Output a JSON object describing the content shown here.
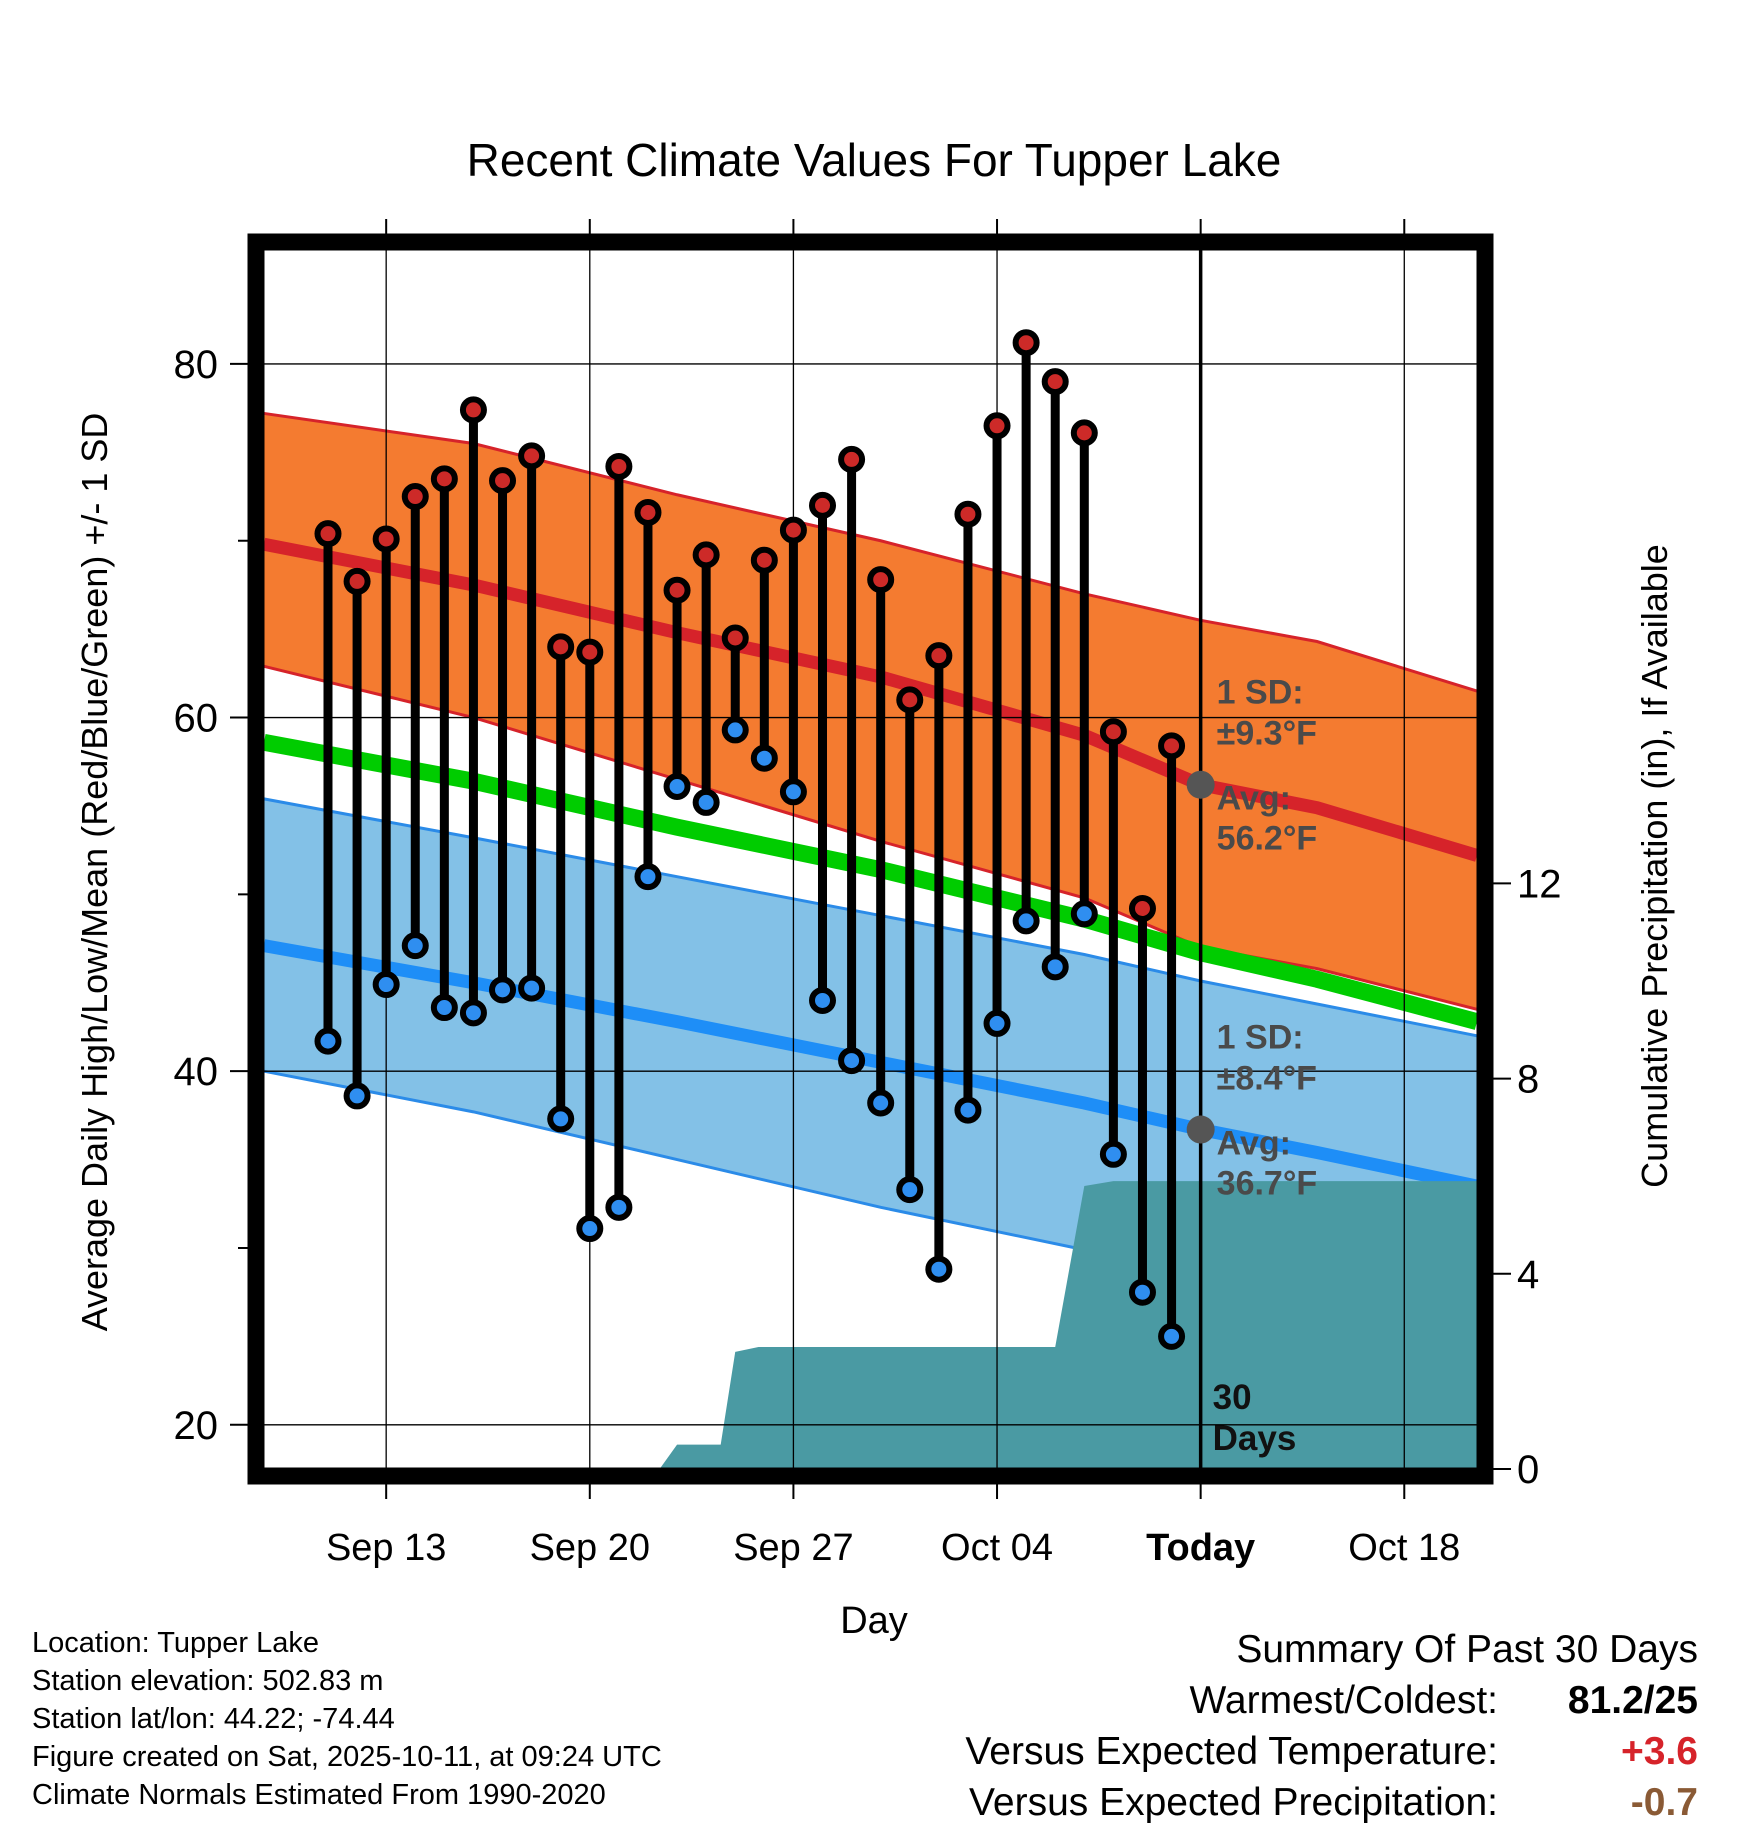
{
  "chart_data": {
    "type": "line",
    "title": "Recent Climate Values For Tupper Lake",
    "xlabel": "Day",
    "ylabel": "Average Daily High/Low/Mean (Red/Blue/Green) +/- 1 SD",
    "y2label": "Cumulative Precipitation (in), If Available",
    "xlim_days": [
      -32.2,
      9.5
    ],
    "ylim": [
      17.5,
      86.5
    ],
    "y2lim": [
      0,
      25
    ],
    "x_tick_labels": [
      "Sep 13",
      "Sep 20",
      "Sep 27",
      "Oct 04",
      "Today",
      "Oct 18"
    ],
    "x_tick_days": [
      -28,
      -21,
      -14,
      -7,
      0,
      7
    ],
    "y_ticks": [
      20,
      40,
      60,
      80
    ],
    "y_tick_labels": [
      "20",
      "40",
      "60",
      "80"
    ],
    "y2_ticks": [
      0,
      4,
      8,
      12
    ],
    "y2_tick_labels": [
      "0",
      "4",
      "8",
      "12"
    ],
    "normals": {
      "x": [
        -32.2,
        -25,
        -18,
        -11,
        -4,
        0,
        4,
        9.5
      ],
      "high_mean": [
        69.8,
        67.5,
        64.8,
        62.3,
        59.0,
        56.2,
        54.9,
        52.2
      ],
      "high_upper": [
        77.2,
        75.5,
        72.6,
        70.0,
        67.0,
        65.5,
        64.3,
        61.5
      ],
      "high_lower": [
        62.9,
        60.0,
        56.5,
        53.0,
        49.8,
        47.0,
        45.8,
        43.5
      ],
      "low_mean": [
        47.1,
        45.0,
        42.8,
        40.5,
        38.2,
        36.7,
        35.4,
        33.5
      ],
      "low_upper": [
        55.4,
        53.2,
        51.0,
        48.8,
        46.6,
        45.1,
        43.8,
        42.0
      ],
      "low_lower": [
        40.0,
        37.7,
        35.0,
        32.3,
        29.9,
        28.3,
        27.0,
        25.1
      ],
      "mean": [
        58.6,
        56.4,
        53.8,
        51.4,
        48.6,
        46.7,
        45.2,
        42.8
      ]
    },
    "high_sd_label": "1 SD:",
    "high_sd_value": "±9.3°F",
    "high_avg_label": "Avg:",
    "high_avg_value": "56.2°F",
    "low_sd_label": "1 SD:",
    "low_sd_value": "±8.4°F",
    "low_avg_label": "Avg:",
    "low_avg_value": "36.7°F",
    "period_label_line1": "30",
    "period_label_line2": "Days",
    "observations": {
      "days": [
        -30,
        -29,
        -28,
        -27,
        -26,
        -25,
        -24,
        -23,
        -22,
        -21,
        -20,
        -19,
        -18,
        -17,
        -16,
        -15,
        -14,
        -13,
        -12,
        -11,
        -10,
        -9,
        -8,
        -7,
        -6,
        -5,
        -4,
        -3,
        -2,
        -1
      ],
      "highs": [
        70.4,
        67.7,
        70.1,
        72.5,
        73.5,
        77.4,
        73.4,
        74.8,
        64.0,
        63.7,
        74.2,
        71.6,
        67.2,
        69.2,
        64.5,
        68.9,
        70.6,
        72.0,
        74.6,
        67.8,
        61.0,
        63.5,
        71.5,
        76.5,
        81.2,
        79.0,
        76.1,
        59.2,
        49.2,
        58.4
      ],
      "lows": [
        41.7,
        38.6,
        44.9,
        47.1,
        43.6,
        43.3,
        44.6,
        44.7,
        37.3,
        31.1,
        32.3,
        51.0,
        56.1,
        55.2,
        59.3,
        57.7,
        55.8,
        44.0,
        40.6,
        38.2,
        33.3,
        28.8,
        37.8,
        42.7,
        48.5,
        45.9,
        48.9,
        35.3,
        27.5,
        25.0
      ]
    },
    "precip": {
      "x": [
        -18.6,
        -18.0,
        -16.5,
        -16.0,
        -15.2,
        -5.0,
        -4.0,
        -3.0,
        9.5
      ],
      "cum": [
        0,
        0.5,
        0.5,
        2.4,
        2.5,
        2.5,
        5.8,
        5.9,
        5.9
      ]
    }
  },
  "colors": {
    "high_band": "#f47b30",
    "high_mean": "#d6232a",
    "low_band": "#83c1e7",
    "low_mean": "#1e8ef7",
    "low_band_edge": "#2b8be8",
    "mean": "#00cc00",
    "precip": "#4a9aa3",
    "high_marker": "#cd2a28",
    "low_marker": "#2f8ef0",
    "avg_dot": "#555555",
    "annotation": "#4a4a4a",
    "positive": "#d6232a",
    "negative": "#8a5a35"
  },
  "footer": {
    "location": "Location: Tupper Lake",
    "elevation": "Station elevation: 502.83 m",
    "latlon": "Station lat/lon: 44.22; -74.44",
    "created": "Figure created on Sat, 2025-10-11, at 09:24 UTC",
    "normals": "Climate Normals Estimated From 1990-2020"
  },
  "summary": {
    "title": "Summary Of Past 30 Days",
    "warmest_label": "Warmest/Coldest:",
    "warmest_value": "81.2/25",
    "temp_label": "Versus Expected Temperature:",
    "temp_value": "+3.6",
    "precip_label": "Versus Expected Precipitation:",
    "precip_value": "-0.7"
  }
}
